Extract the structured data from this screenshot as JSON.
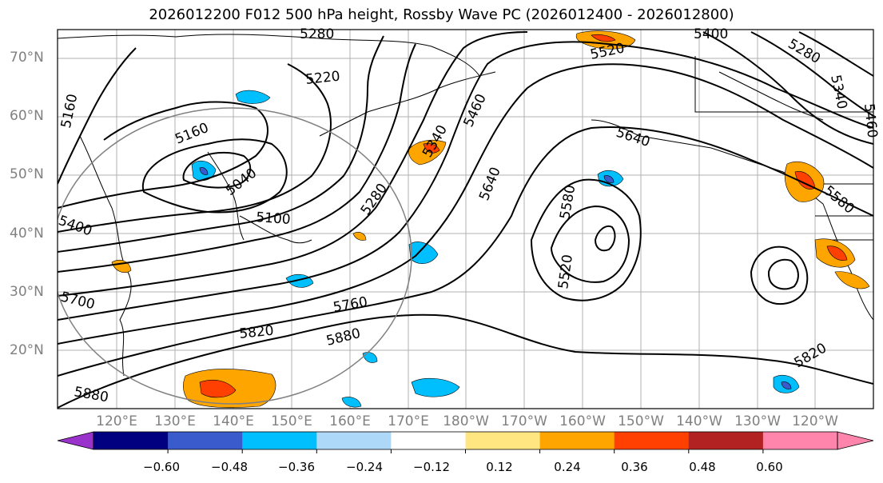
{
  "title": "2026012200 F012 500 hPa height, Rossby Wave PC (2026012400 - 2026012800)",
  "lat_labels": [
    "70°N",
    "60°N",
    "50°N",
    "40°N",
    "30°N",
    "20°N"
  ],
  "lon_labels": [
    "120°E",
    "130°E",
    "140°E",
    "150°E",
    "160°E",
    "170°E",
    "180°W",
    "170°W",
    "160°W",
    "150°W",
    "140°W",
    "130°W",
    "120°W"
  ],
  "contour_labels": [
    "5280",
    "5400",
    "5520",
    "5280",
    "5220",
    "5160",
    "5160",
    "5040",
    "5100",
    "5400",
    "5280",
    "5340",
    "5460",
    "5640",
    "5640",
    "5580",
    "5520",
    "5700",
    "5760",
    "5820",
    "5880",
    "5880",
    "5820",
    "5340",
    "5460",
    "5580"
  ],
  "colorbar": {
    "ticks": [
      "−0.60",
      "−0.48",
      "−0.36",
      "−0.24",
      "−0.12",
      "0.12",
      "0.24",
      "0.36",
      "0.48",
      "0.60"
    ],
    "colors": [
      "#9933cc",
      "#000080",
      "#3a5bcc",
      "#00bfff",
      "#add8f7",
      "#ffffff",
      "#ffe680",
      "#ffa500",
      "#ff4000",
      "#b22222",
      "#ff85ad",
      "#ff85ad"
    ]
  }
}
